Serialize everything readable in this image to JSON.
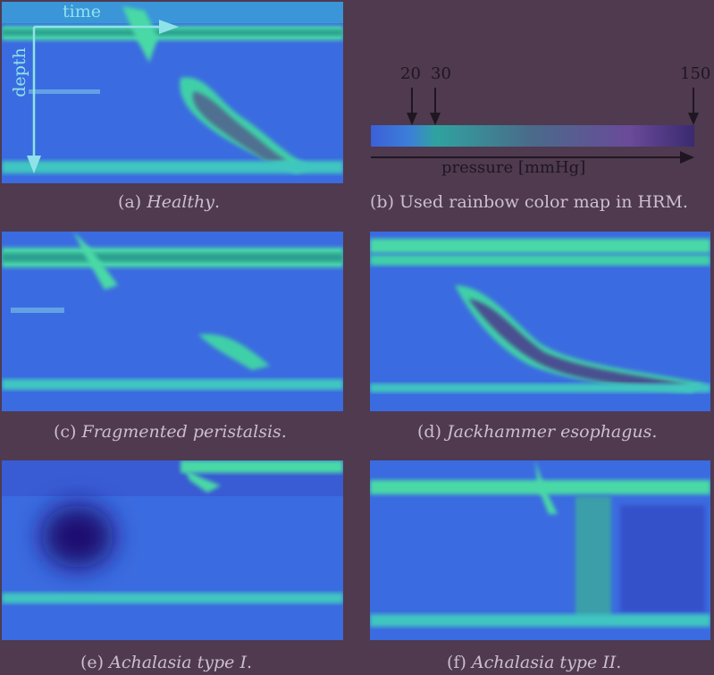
{
  "panels": {
    "a": {
      "caption_prefix": "(a) ",
      "caption_italic": "Healthy",
      "caption_suffix": "."
    },
    "b": {
      "caption_prefix": "(b) ",
      "caption_italic": "",
      "caption_suffix": "Used rainbow color map in HRM."
    },
    "c": {
      "caption_prefix": "(c) ",
      "caption_italic": "Fragmented peristalsis",
      "caption_suffix": "."
    },
    "d": {
      "caption_prefix": "(d) ",
      "caption_italic": "Jackhammer esophagus",
      "caption_suffix": "."
    },
    "e": {
      "caption_prefix": "(e) ",
      "caption_italic": "Achalasia type I",
      "caption_suffix": "."
    },
    "f": {
      "caption_prefix": "(f) ",
      "caption_italic": "Achalasia type II",
      "caption_suffix": "."
    }
  },
  "axes": {
    "time_label": "time",
    "depth_label": "depth"
  },
  "colormap": {
    "ticks": [
      "20",
      "30",
      "150"
    ],
    "xlabel": "pressure [mmHg]"
  },
  "colors": {
    "background": "#4f3a4f",
    "plot_base": "#3b6be0",
    "low": "#3c5fd8",
    "mid": "#2fc3b8",
    "high": "#5a3a82",
    "caption": "#cdbfcf",
    "axis_arrow": "#8fe3e8"
  }
}
